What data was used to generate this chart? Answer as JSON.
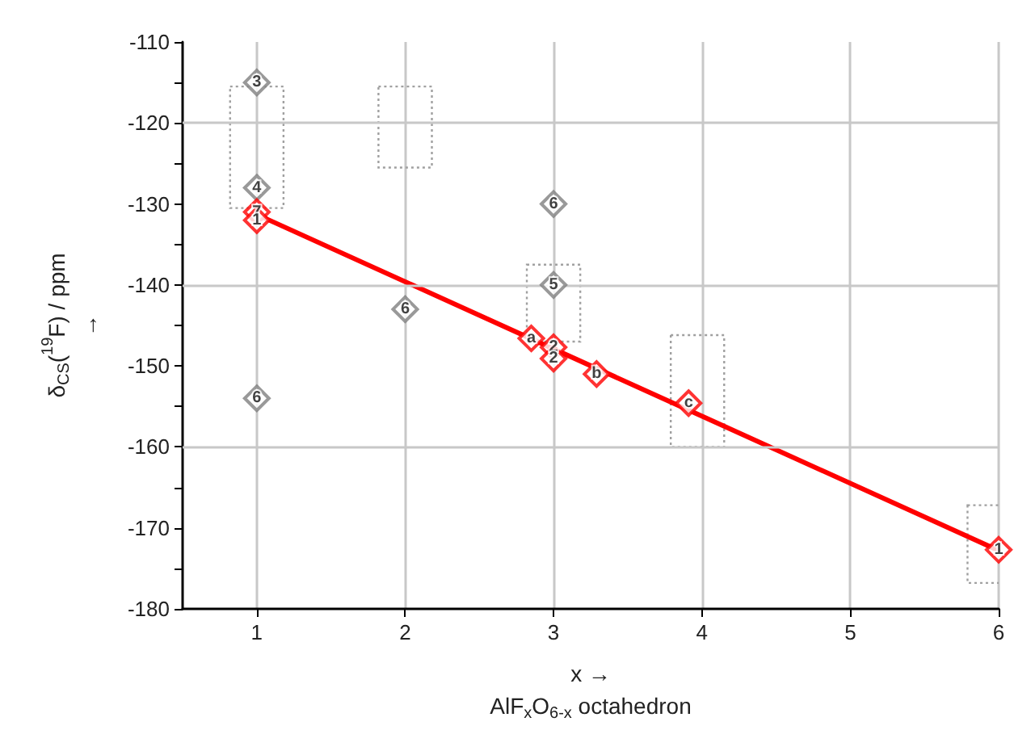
{
  "chart_data": {
    "type": "scatter",
    "xlabel": "x →\nAlF$_{x}$O$_{6-x}$ octahedron",
    "ylabel": "δ$_{CS}$($^{19}$F) / ppm\n→",
    "xlim": [
      0.5,
      6
    ],
    "xticks": [
      1,
      2,
      3,
      4,
      5,
      6
    ],
    "ylim": [
      -180,
      -110
    ],
    "yticks": [
      -180,
      {
        "value": -175,
        "label": null
      },
      -170,
      {
        "value": -165,
        "label": null
      },
      -160,
      {
        "value": -155,
        "label": null
      },
      -150,
      {
        "value": -145,
        "label": null
      },
      -140,
      {
        "value": -135,
        "label": null
      },
      -130,
      {
        "value": -125,
        "label": null
      },
      -120,
      {
        "value": -115,
        "label": null
      },
      -110
    ],
    "grid": "x",
    "ref_lines": [
      {
        "axis": "y",
        "value": -120,
        "color": "#c8c8c8"
      },
      {
        "axis": "y",
        "value": -140,
        "color": "#c8c8c8"
      },
      {
        "axis": "y",
        "value": -160,
        "color": "#c8c8c8"
      }
    ],
    "series": [
      {
        "type": "bar",
        "color": "#a0a0a0",
        "line_style": "dotted",
        "x": [
          1,
          2,
          3,
          3.97,
          5.97
        ],
        "base": [
          -130.5,
          -125.5,
          -147,
          -160,
          -176.8
        ],
        "values": [
          15,
          10,
          9.5,
          13.8,
          9.6
        ]
      },
      {
        "type": "line",
        "color": "#ff0000",
        "marker": "none",
        "line_style": "solid",
        "x": [
          1,
          6
        ],
        "values": [
          -131.3,
          -172.8
        ]
      },
      {
        "color": "#808080",
        "marker": "diamond",
        "x": [
          1,
          1,
          1,
          2,
          3,
          3
        ],
        "values": [
          -115,
          -128,
          -154,
          -143,
          -130,
          -140
        ]
      },
      {
        "color": "#ff0000",
        "marker": "diamond",
        "x": [
          1,
          1,
          2.85,
          3,
          3,
          3.29,
          3.91,
          6
        ],
        "values": [
          -131,
          -132,
          -146.6,
          -147.7,
          -149.1,
          -151,
          -154.6,
          -172.7
        ]
      }
    ],
    "annotations": [
      {
        "text": "3",
        "x": 1,
        "y": -115
      },
      {
        "text": "4",
        "x": 1,
        "y": -128
      },
      {
        "text": "6",
        "x": 1,
        "y": -154
      },
      {
        "text": "6",
        "x": 2,
        "y": -143
      },
      {
        "text": "6",
        "x": 3,
        "y": -130
      },
      {
        "text": "5",
        "x": 3,
        "y": -140
      },
      {
        "text": "7",
        "x": 1,
        "y": -131
      },
      {
        "text": "1",
        "x": 1,
        "y": -132
      },
      {
        "text": "a",
        "x": 2.85,
        "y": -146.6
      },
      {
        "text": "2",
        "x": 3,
        "y": -147.7
      },
      {
        "text": "2",
        "x": 3,
        "y": -149.1
      },
      {
        "text": "b",
        "x": 3.29,
        "y": -151
      },
      {
        "text": "c",
        "x": 3.91,
        "y": -154.6
      },
      {
        "text": "1",
        "x": 6,
        "y": -172.7
      }
    ]
  }
}
